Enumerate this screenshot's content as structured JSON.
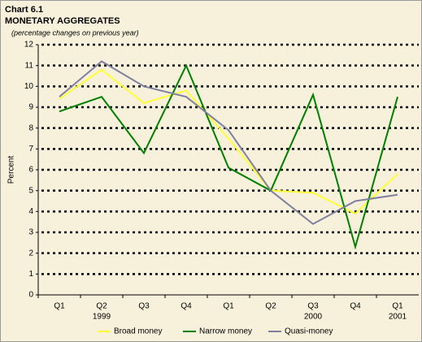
{
  "chart_data": {
    "type": "line",
    "title": "Chart 6.1",
    "subtitle": "MONETARY AGGREGATES",
    "note": "(percentage changes on previous year)",
    "y_label": "Percent",
    "categories": [
      "Q1",
      "Q2",
      "Q3",
      "Q4",
      "Q1",
      "Q2",
      "Q3",
      "Q4",
      "Q1"
    ],
    "x_year_labels": [
      null,
      "1999",
      null,
      null,
      null,
      null,
      "2000",
      null,
      "2001"
    ],
    "series": [
      {
        "name": "Broad money",
        "color": "#ffff33",
        "values": [
          9.4,
          10.8,
          9.2,
          9.8,
          7.5,
          5.0,
          4.9,
          3.9,
          5.8
        ]
      },
      {
        "name": "Narrow money",
        "color": "#008000",
        "values": [
          8.8,
          9.5,
          6.8,
          11.0,
          6.1,
          5.0,
          9.6,
          2.3,
          9.5
        ]
      },
      {
        "name": "Quasi-money",
        "color": "#7f7f9f",
        "values": [
          9.5,
          11.2,
          10.0,
          9.5,
          7.9,
          5.0,
          3.4,
          4.5,
          4.8
        ]
      }
    ],
    "ylim": [
      0,
      12
    ],
    "yticks": [
      0,
      1,
      2,
      3,
      4,
      5,
      6,
      7,
      8,
      9,
      10,
      11,
      12
    ],
    "grid": true,
    "legend": "bottom"
  }
}
